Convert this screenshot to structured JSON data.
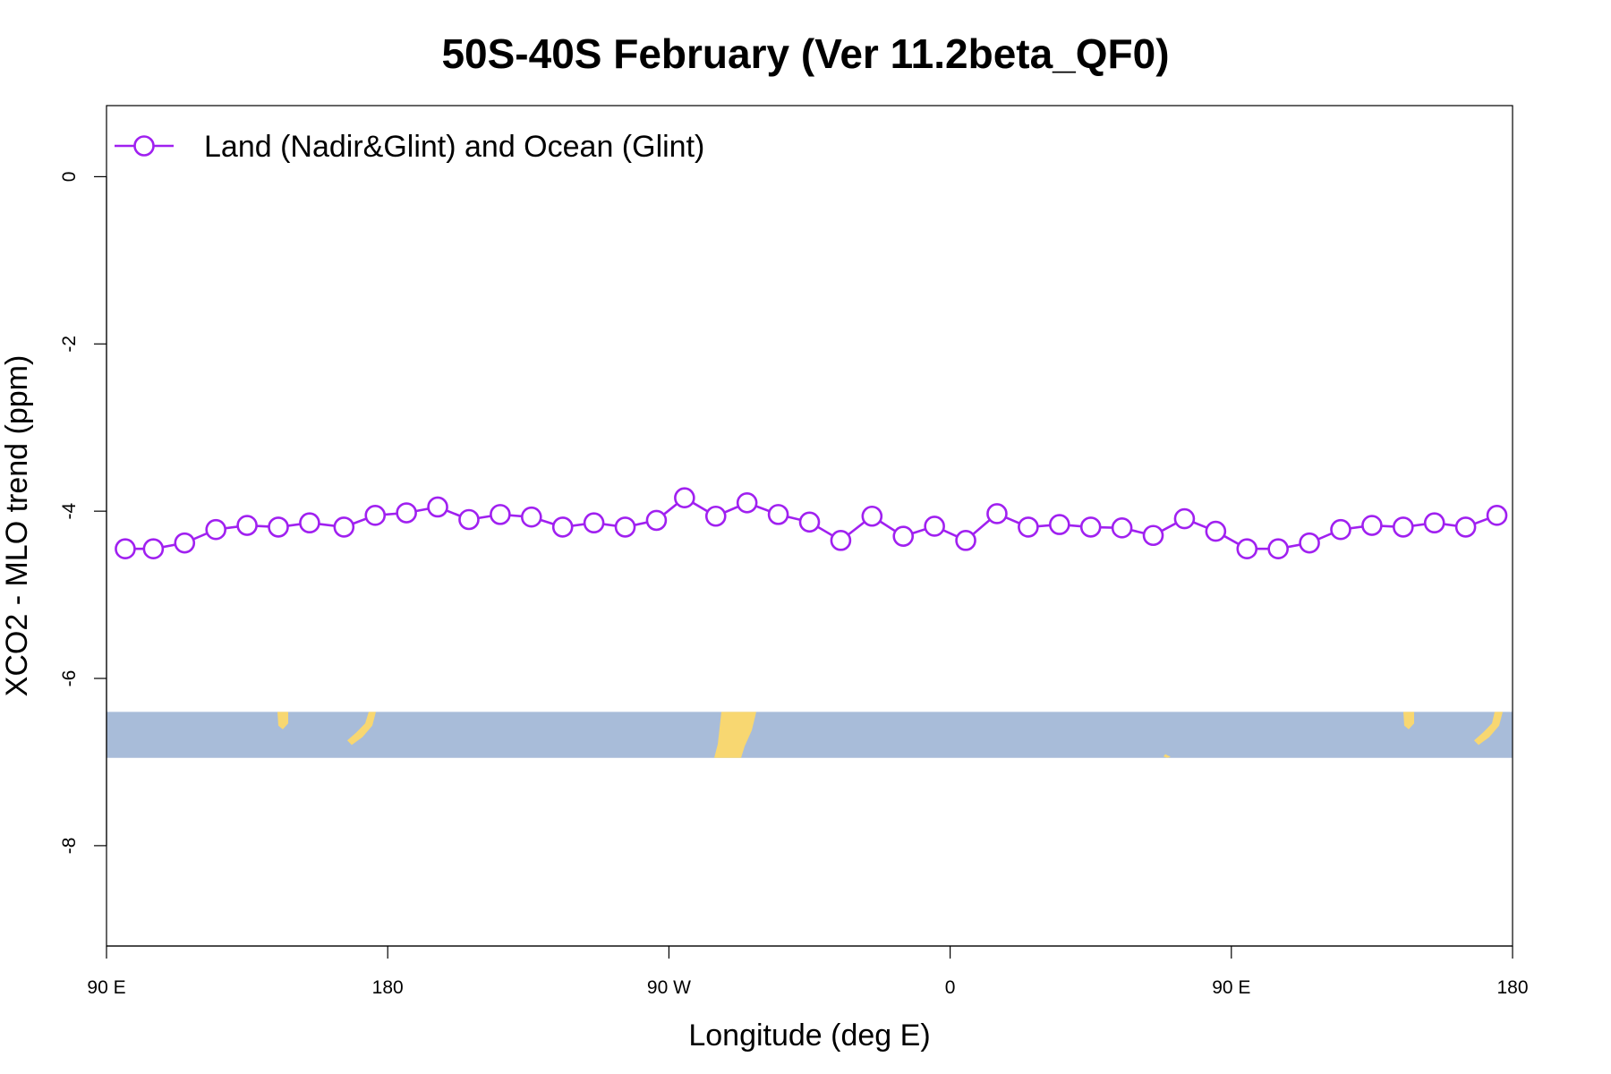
{
  "chart_data": {
    "type": "line",
    "title": "50S-40S February (Ver 11.2beta_QF0)",
    "xlabel": "Longitude (deg E)",
    "ylabel": "XCO2 - MLO trend (ppm)",
    "x_ticks": [
      {
        "value": 90,
        "label": "90 E"
      },
      {
        "value": 180,
        "label": "180"
      },
      {
        "value": 270,
        "label": "90 W"
      },
      {
        "value": 360,
        "label": "0"
      },
      {
        "value": 450,
        "label": "90 E"
      },
      {
        "value": 540,
        "label": "180"
      }
    ],
    "y_ticks": [
      {
        "value": 0,
        "label": "0"
      },
      {
        "value": -2,
        "label": "-2"
      },
      {
        "value": -4,
        "label": "-4"
      },
      {
        "value": -6,
        "label": "-6"
      },
      {
        "value": -8,
        "label": "-8"
      }
    ],
    "xlim": [
      90,
      540
    ],
    "ylim": [
      -9.2,
      0.85
    ],
    "legend": {
      "position": "top-left"
    },
    "map_band": {
      "y_range": [
        -6.95,
        -6.4
      ],
      "ocean_color": "#a8bcd9",
      "land_color": "#f8d771"
    },
    "series": [
      {
        "name": "Land (Nadir&Glint) and Ocean (Glint)",
        "color": "#a020f0",
        "x": [
          96,
          105,
          115,
          125,
          135,
          145,
          155,
          166,
          176,
          186,
          196,
          206,
          216,
          226,
          236,
          246,
          256,
          266,
          275,
          285,
          295,
          305,
          315,
          325,
          335,
          345,
          355,
          365,
          375,
          385,
          395,
          405,
          415,
          425,
          435,
          445,
          455,
          465,
          475,
          485,
          495,
          505,
          515,
          525,
          535
        ],
        "y": [
          -4.45,
          -4.45,
          -4.38,
          -4.22,
          -4.17,
          -4.19,
          -4.14,
          -4.19,
          -4.05,
          -4.02,
          -3.95,
          -4.1,
          -4.04,
          -4.07,
          -4.19,
          -4.14,
          -4.19,
          -4.11,
          -3.84,
          -4.06,
          -3.9,
          -4.04,
          -4.13,
          -4.35,
          -4.06,
          -4.3,
          -4.18,
          -4.35,
          -4.03,
          -4.19,
          -4.16,
          -4.19,
          -4.2,
          -4.29,
          -4.09,
          -4.24,
          -4.45,
          -4.45,
          -4.38,
          -4.22,
          -4.17,
          -4.19,
          -4.14,
          -4.19,
          -4.05
        ]
      }
    ]
  }
}
